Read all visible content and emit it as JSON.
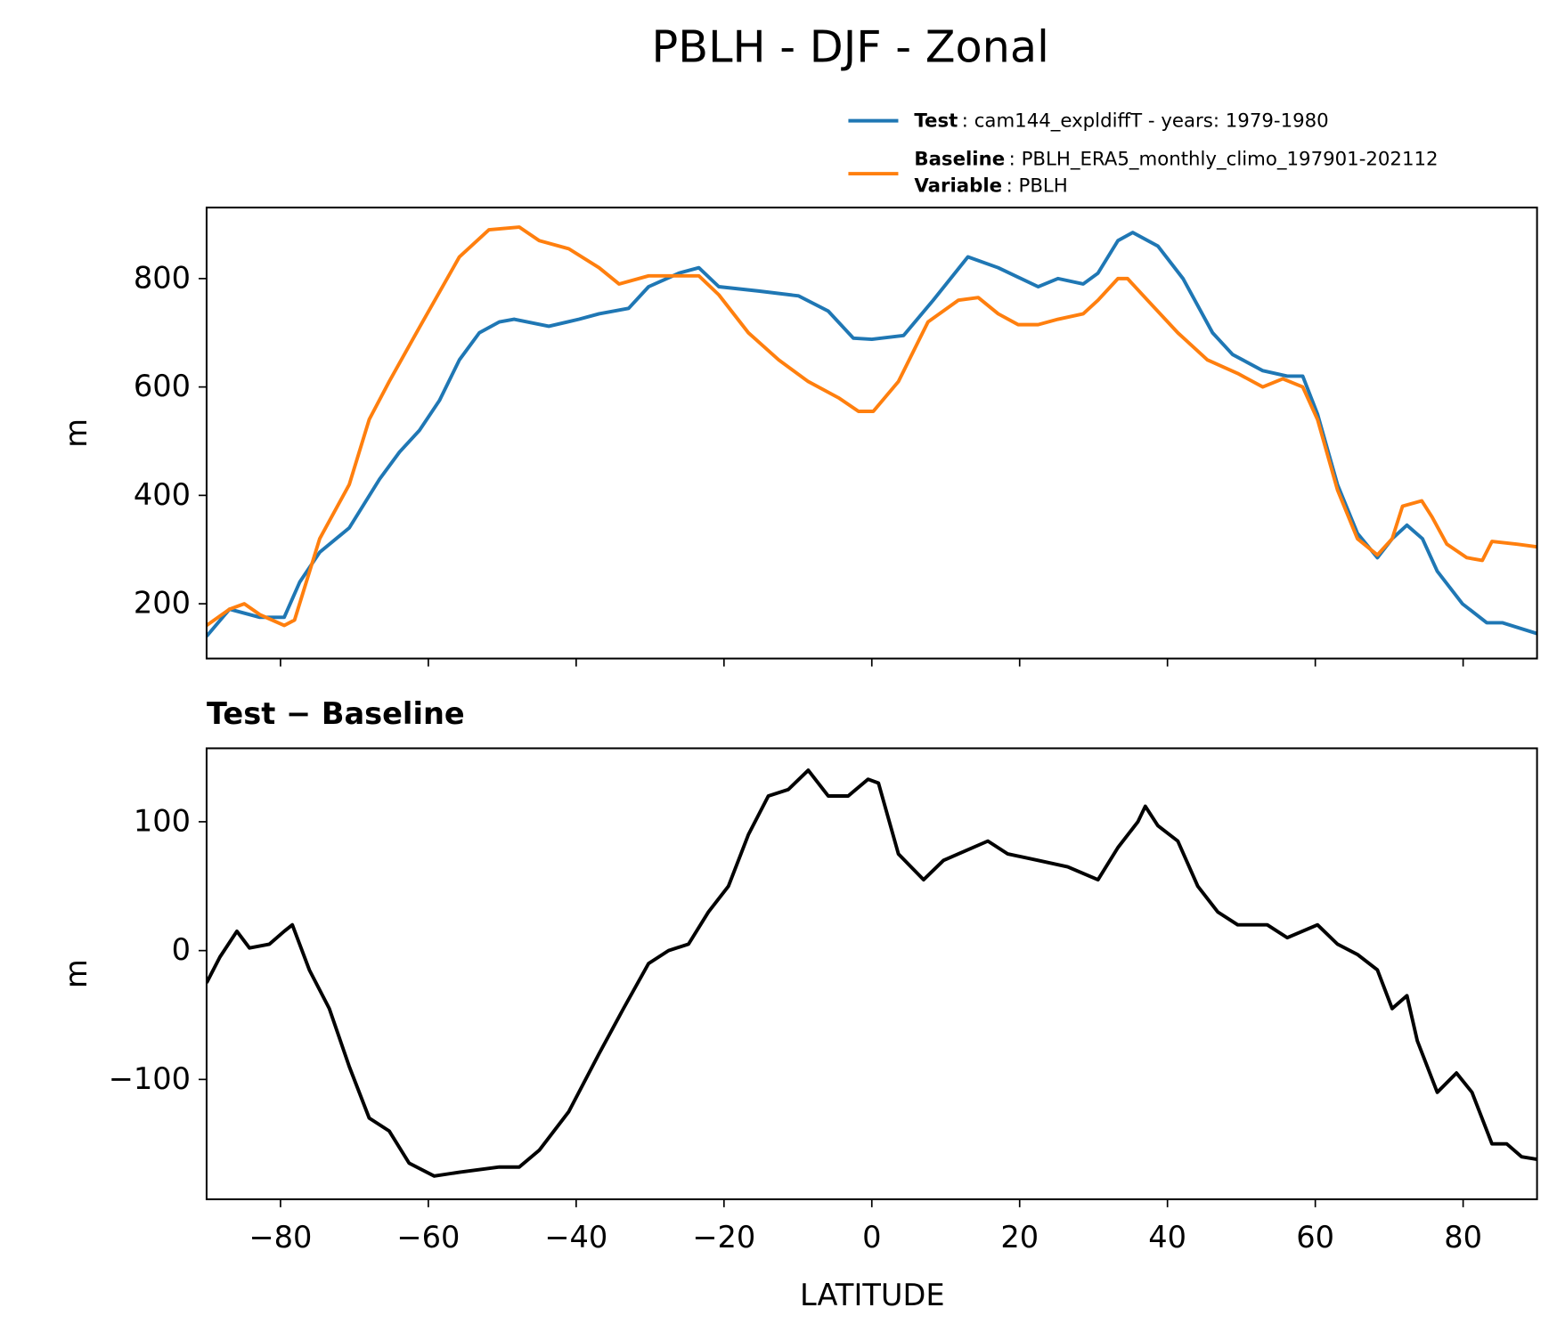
{
  "chart_data": [
    {
      "type": "line",
      "title": "PBLH - DJF - Zonal",
      "ylabel": "m",
      "xlim": [
        -90,
        90
      ],
      "xticks": [
        -80,
        -60,
        -40,
        -20,
        0,
        20,
        40,
        60,
        80
      ],
      "xtick_labels": false,
      "ylim": [
        99,
        931
      ],
      "yticks": [
        200,
        400,
        600,
        800
      ],
      "grid": false,
      "legend": "upper right",
      "series": [
        {
          "name": "Test",
          "legend_text": ": cam144_expldiffT - years: 1979-1980",
          "color": "#1f77b4",
          "x": [
            -90,
            -86.9,
            -82.8,
            -79.5,
            -77.4,
            -74.7,
            -70.7,
            -66.6,
            -63.9,
            -61.2,
            -58.5,
            -55.8,
            -53.1,
            -50.4,
            -48.4,
            -43.7,
            -39.6,
            -36.9,
            -32.9,
            -30.2,
            -26.1,
            -23.4,
            -20.7,
            -15.3,
            -9.9,
            -5.9,
            -2.5,
            0,
            4.3,
            8.3,
            13,
            17.1,
            22.5,
            25.2,
            28.6,
            30.6,
            33.3,
            35.3,
            38.7,
            42.1,
            46.1,
            48.8,
            52.9,
            56.2,
            58.3,
            60.3,
            63,
            65.7,
            68.4,
            70.4,
            72.4,
            74.5,
            76.5,
            79.9,
            83.2,
            85.3,
            90
          ],
          "values": [
            140,
            190,
            175,
            175,
            240,
            295,
            340,
            430,
            480,
            520,
            575,
            650,
            700,
            720,
            725,
            712,
            725,
            735,
            745,
            785,
            810,
            820,
            785,
            777,
            768,
            740,
            690,
            688,
            695,
            760,
            840,
            820,
            785,
            800,
            790,
            810,
            870,
            885,
            860,
            800,
            700,
            660,
            630,
            620,
            620,
            550,
            420,
            330,
            285,
            320,
            345,
            320,
            260,
            200,
            165,
            165,
            145
          ]
        },
        {
          "name": "Baseline",
          "legend_text": ": PBLH_ERA5_monthly_climo_197901-202112",
          "color": "#ff7f0e",
          "x": [
            -90,
            -86.9,
            -84.9,
            -82.8,
            -79.5,
            -78.1,
            -74.7,
            -70.7,
            -68,
            -65.3,
            -61.2,
            -55.8,
            -51.8,
            -47.7,
            -45,
            -41,
            -36.9,
            -34.2,
            -30.2,
            -23.4,
            -20.7,
            -16.7,
            -12.6,
            -8.6,
            -4.5,
            -1.8,
            0.2,
            3.6,
            7.6,
            11.7,
            14.4,
            17.1,
            19.8,
            22.5,
            25.2,
            28.6,
            30.6,
            33.3,
            34.6,
            37.3,
            41.4,
            45.4,
            49.5,
            52.9,
            55.6,
            58.3,
            60.3,
            63,
            65.7,
            68.4,
            70.4,
            71.8,
            74.4,
            75.8,
            77.8,
            80.5,
            82.6,
            83.9,
            87.3,
            90
          ],
          "values": [
            160,
            190,
            200,
            180,
            160,
            170,
            320,
            420,
            540,
            610,
            710,
            840,
            890,
            895,
            870,
            855,
            820,
            790,
            805,
            805,
            770,
            700,
            650,
            610,
            580,
            555,
            555,
            610,
            720,
            760,
            765,
            735,
            715,
            715,
            725,
            735,
            760,
            800,
            800,
            760,
            700,
            650,
            625,
            600,
            615,
            600,
            540,
            410,
            320,
            290,
            320,
            380,
            390,
            360,
            310,
            285,
            280,
            315,
            310,
            305
          ]
        }
      ],
      "legend_extra": {
        "label": "Variable",
        "text": ": PBLH"
      }
    },
    {
      "type": "line",
      "title": "Test − Baseline",
      "ylabel": "m",
      "xlabel": "LATITUDE",
      "xlim": [
        -90,
        90
      ],
      "xticks": [
        {
          "value": -80,
          "label": "−80"
        },
        {
          "value": -60,
          "label": "−60"
        },
        {
          "value": -40,
          "label": "−40"
        },
        {
          "value": -20,
          "label": "−20"
        },
        0,
        20,
        40,
        60,
        80
      ],
      "xtick_labels": true,
      "ylim": [
        -193,
        157
      ],
      "yticks": [
        {
          "value": -100,
          "label": "−100"
        },
        0,
        100
      ],
      "grid": false,
      "series": [
        {
          "color": "#000000",
          "x": [
            -90,
            -88.2,
            -85.9,
            -84.2,
            -81.5,
            -79.5,
            -78.4,
            -76.1,
            -73.4,
            -70.7,
            -68,
            -65.3,
            -62.6,
            -59.2,
            -55.8,
            -50.4,
            -47.7,
            -45,
            -41,
            -36.9,
            -33.6,
            -30.2,
            -27.5,
            -24.8,
            -22.1,
            -19.4,
            -16.7,
            -14,
            -11.3,
            -8.6,
            -5.9,
            -3.2,
            -0.5,
            0.9,
            3.6,
            7,
            9.7,
            11.7,
            15.7,
            18.4,
            22.5,
            26.5,
            30.6,
            33.3,
            36,
            37,
            38.7,
            41.4,
            44.1,
            46.8,
            49.5,
            53.5,
            56.2,
            60.3,
            63,
            65.7,
            68.4,
            70.4,
            72.4,
            73.8,
            76.5,
            79.1,
            81.2,
            83.9,
            85.9,
            87.9,
            90
          ],
          "values": [
            -25,
            -5,
            15,
            2,
            5,
            15,
            20,
            -15,
            -45,
            -90,
            -130,
            -140,
            -165,
            -175,
            -172,
            -168,
            -168,
            -155,
            -125,
            -80,
            -45,
            -10,
            0,
            5,
            30,
            50,
            90,
            120,
            125,
            140,
            120,
            120,
            133,
            130,
            75,
            55,
            70,
            75,
            85,
            75,
            70,
            65,
            55,
            80,
            100,
            112,
            97,
            85,
            50,
            30,
            20,
            20,
            10,
            20,
            5,
            -3,
            -15,
            -45,
            -35,
            -70,
            -110,
            -95,
            -110,
            -150,
            -150,
            -160,
            -162
          ]
        }
      ]
    }
  ]
}
